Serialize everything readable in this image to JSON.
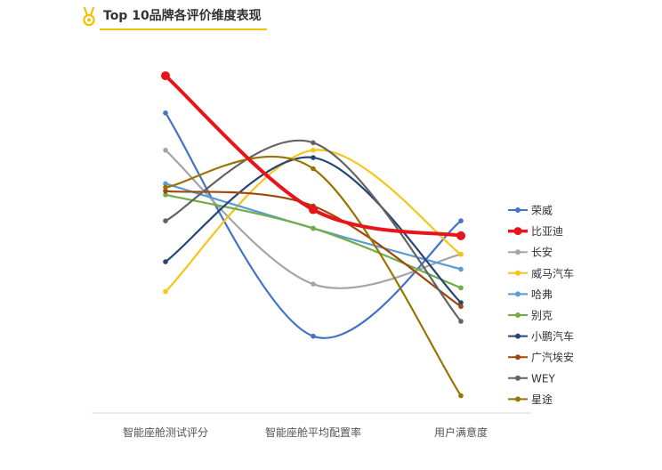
{
  "colors": {
    "accent": "#f2c200"
  },
  "icons": {
    "title_icon": "medal-icon"
  },
  "chart_data": {
    "type": "line",
    "title": "Top 10品牌各评价维度表现",
    "xlabel": "",
    "ylabel": "",
    "categories": [
      "智能座舱测试评分",
      "智能座舱平均配置率",
      "用户满意度"
    ],
    "ylim": [
      0,
      100
    ],
    "y_axis_visible": false,
    "grid": false,
    "legend": "right",
    "series": [
      {
        "name": "荣威",
        "color": "#4472c4",
        "values": [
          84,
          24,
          55
        ]
      },
      {
        "name": "比亚迪",
        "color": "#e8141c",
        "values": [
          94,
          58,
          51
        ],
        "highlight": true
      },
      {
        "name": "长安",
        "color": "#a5a5a5",
        "values": [
          74,
          38,
          46
        ]
      },
      {
        "name": "威马汽车",
        "color": "#f5c518",
        "values": [
          36,
          74,
          46
        ]
      },
      {
        "name": "哈弗",
        "color": "#5b9bd5",
        "values": [
          65,
          53,
          42
        ]
      },
      {
        "name": "别克",
        "color": "#70ad47",
        "values": [
          62,
          53,
          37
        ]
      },
      {
        "name": "小鹏汽车",
        "color": "#264478",
        "values": [
          44,
          72,
          33
        ]
      },
      {
        "name": "广汽埃安",
        "color": "#9e480e",
        "values": [
          63,
          59,
          32
        ]
      },
      {
        "name": "WEY",
        "color": "#636363",
        "values": [
          55,
          76,
          28
        ]
      },
      {
        "name": "星途",
        "color": "#997300",
        "values": [
          64,
          69,
          8
        ]
      }
    ]
  }
}
